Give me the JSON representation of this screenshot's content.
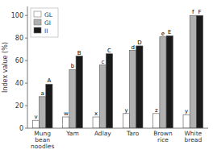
{
  "chart_data": {
    "type": "bar",
    "y_label": "Index value (%)",
    "categories": [
      "Mung\nbean\nnoodles",
      "Yam",
      "Adlay",
      "Taro",
      "Brown\nrice",
      "White\nbread"
    ],
    "series": [
      {
        "name": "GL",
        "color": "#ffffff",
        "values": [
          7,
          10,
          10,
          13,
          13,
          12
        ],
        "annotations": [
          "v",
          "w",
          "x",
          "y",
          "z",
          "y"
        ]
      },
      {
        "name": "GI",
        "color": "#b0b0b0",
        "values": [
          28,
          52,
          56,
          69,
          81,
          100
        ],
        "annotations": [
          "a",
          "b",
          "c",
          "d",
          "e",
          "f"
        ]
      },
      {
        "name": "II",
        "color": "#1a1a1a",
        "values": [
          39,
          64,
          66,
          73,
          82,
          100
        ],
        "annotations": [
          "A",
          "B",
          "C",
          "D",
          "E",
          "F"
        ]
      }
    ],
    "ylim": [
      0,
      108
    ],
    "yticks": [
      0,
      20,
      40,
      60,
      80,
      100
    ],
    "grid": false,
    "legend": "upper left"
  }
}
